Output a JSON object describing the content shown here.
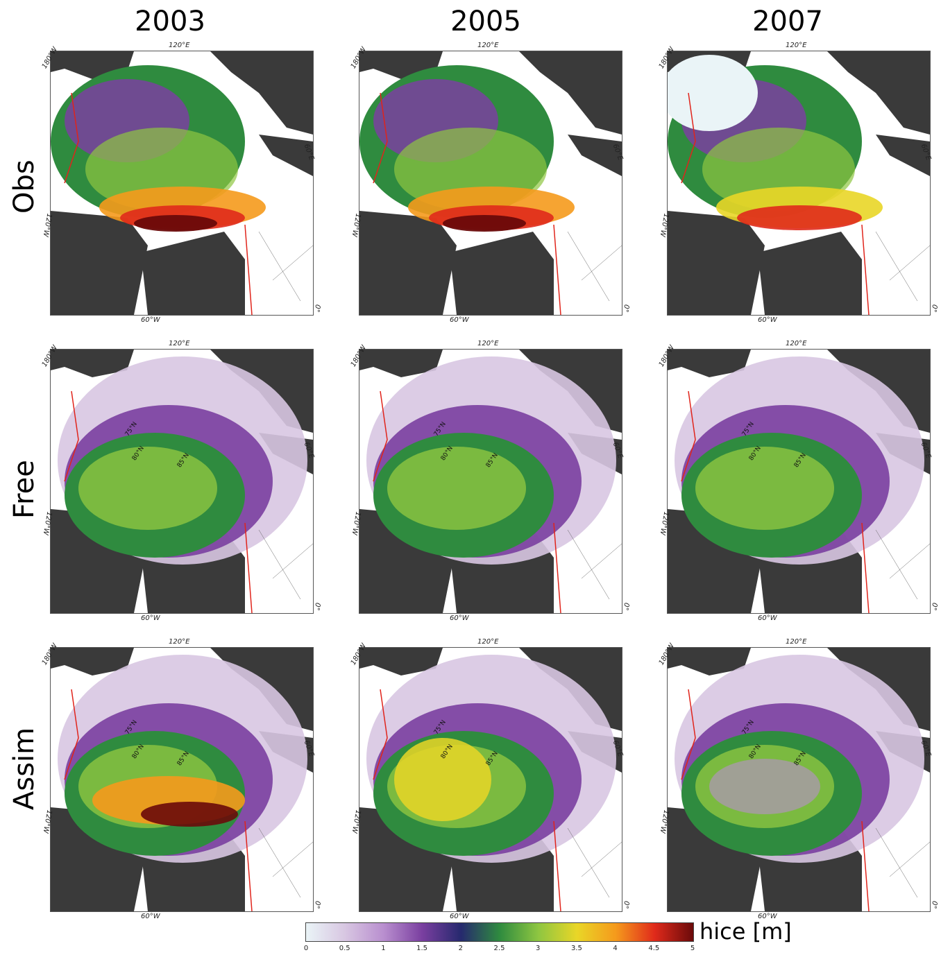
{
  "columns": [
    "2003",
    "2005",
    "2007"
  ],
  "rows": [
    "Obs",
    "Free",
    "Assim"
  ],
  "longitude_labels": {
    "top": "120°E",
    "left_top": "180°W",
    "right": "60°E",
    "left": "120°W",
    "bottom": "60°W",
    "right_bottom": "0°"
  },
  "latitude_labels": [
    "75°N",
    "80°N",
    "85°N"
  ],
  "colorbar": {
    "label": "hice [m]",
    "ticks": [
      "0",
      "0.5",
      "1",
      "1.5",
      "2",
      "2.5",
      "3",
      "3.5",
      "4",
      "4.5",
      "5"
    ],
    "colors": [
      "#eaf4f7",
      "#d8c7e2",
      "#b98fcf",
      "#7a3fa0",
      "#26296e",
      "#2f8b3f",
      "#8ec641",
      "#e9d627",
      "#f59a1c",
      "#e02a1b",
      "#6a0a0a"
    ]
  }
}
